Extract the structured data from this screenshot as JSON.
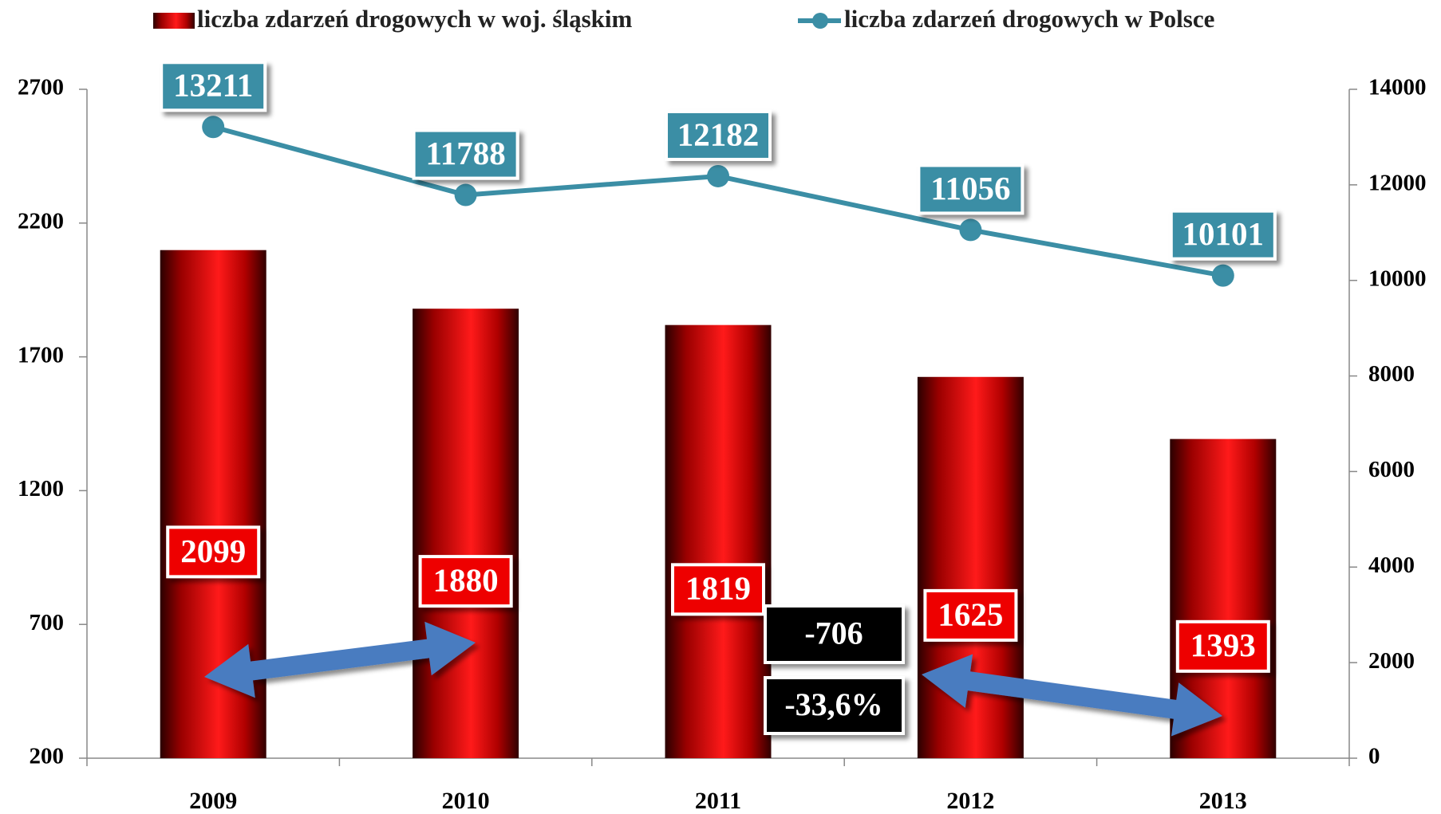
{
  "chart_data": {
    "type": "bar_line",
    "categories": [
      "2009",
      "2010",
      "2011",
      "2012",
      "2013"
    ],
    "series": [
      {
        "name": "liczba zdarzeń drogowych w woj. śląskim",
        "color": "#e60000",
        "type": "bar",
        "values": [
          2099,
          1880,
          1819,
          1625,
          1393
        ]
      },
      {
        "name": "liczba zdarzeń drogowych w Polsce",
        "color": "#3b8ea5",
        "type": "line",
        "axis": "y2",
        "values": [
          13211,
          11788,
          12182,
          11056,
          10101
        ]
      }
    ],
    "ylim": [
      200,
      2700
    ],
    "yticks": [
      200,
      700,
      1200,
      1700,
      2200,
      2700
    ],
    "y2lim": [
      0,
      14000
    ],
    "y2ticks": [
      0,
      2000,
      4000,
      6000,
      8000,
      10000,
      12000,
      14000
    ],
    "legend": "top",
    "annotations": [
      "-706",
      "-33,6%"
    ]
  }
}
